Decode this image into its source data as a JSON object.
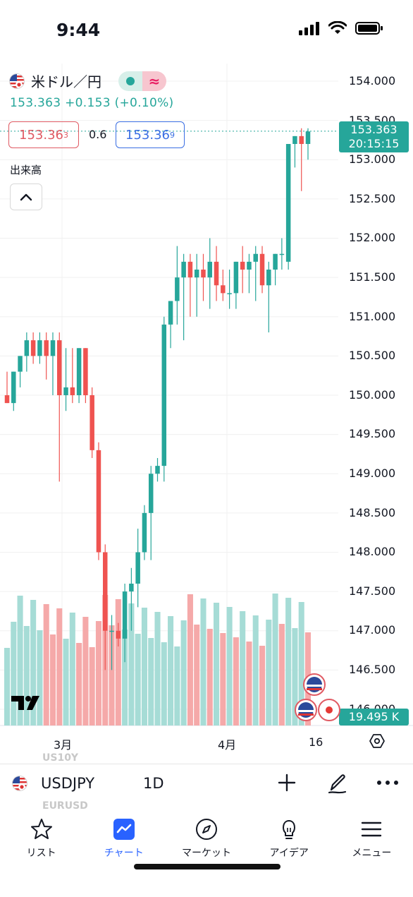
{
  "status_bar": {
    "time": "9:44"
  },
  "header": {
    "symbol_name": "米ドル／円",
    "last_price": "153.363",
    "change": "+0.153",
    "change_pct": "(+0.10%)",
    "bid_main": "153.36",
    "bid_sup": "3",
    "spread": "0.6",
    "ask_main": "153.36",
    "ask_sup": "9",
    "volume_label": "出来高",
    "pill_icon": "≈"
  },
  "price_axis": {
    "labels": [
      "154.000",
      "153.500",
      "153.000",
      "152.500",
      "152.000",
      "151.500",
      "151.000",
      "150.500",
      "150.000",
      "149.500",
      "149.000",
      "148.500",
      "148.000",
      "147.500",
      "147.000",
      "146.500",
      "146.000"
    ],
    "current_price": "153.363",
    "countdown": "20:15:15",
    "volume_value": "19.495 K"
  },
  "time_axis": {
    "labels": [
      "3月",
      "4月",
      "16"
    ]
  },
  "toolbar": {
    "symbol": "USDJPY",
    "interval": "1D",
    "ghost_above": "US10Y",
    "ghost_below": "EURUSD"
  },
  "tabs": [
    {
      "label": "リスト",
      "icon": "star-icon"
    },
    {
      "label": "チャート",
      "icon": "chart-icon"
    },
    {
      "label": "マーケット",
      "icon": "compass-icon"
    },
    {
      "label": "アイデア",
      "icon": "lightbulb-icon"
    },
    {
      "label": "メニュー",
      "icon": "menu-icon"
    }
  ],
  "colors": {
    "up": "#26a69a",
    "down": "#ef5350",
    "up_vol": "#a6dcd6",
    "down_vol": "#f5a9a9",
    "accent": "#2962ff"
  },
  "chart_data": {
    "type": "candlestick",
    "interval": "1D",
    "ylim": [
      146.0,
      154.0
    ],
    "candles": [
      [
        150.0,
        150.3,
        149.9,
        149.9
      ],
      [
        149.9,
        150.3,
        149.8,
        150.3
      ],
      [
        150.3,
        150.5,
        150.1,
        150.5
      ],
      [
        150.5,
        150.8,
        150.3,
        150.7
      ],
      [
        150.7,
        150.8,
        150.4,
        150.5
      ],
      [
        150.5,
        150.8,
        150.4,
        150.7
      ],
      [
        150.7,
        150.8,
        150.2,
        150.5
      ],
      [
        150.5,
        150.8,
        150.0,
        150.7
      ],
      [
        150.7,
        150.8,
        148.9,
        150.0
      ],
      [
        150.0,
        150.6,
        149.8,
        150.1
      ],
      [
        150.1,
        150.6,
        149.9,
        150.0
      ],
      [
        150.0,
        150.6,
        149.9,
        150.6
      ],
      [
        150.6,
        150.6,
        149.9,
        150.0
      ],
      [
        150.0,
        150.1,
        149.2,
        149.3
      ],
      [
        149.3,
        149.4,
        147.9,
        148.0
      ],
      [
        148.0,
        148.1,
        146.5,
        147.0
      ],
      [
        147.0,
        147.2,
        146.5,
        147.0
      ],
      [
        147.0,
        147.1,
        146.8,
        146.9
      ],
      [
        146.9,
        147.6,
        146.6,
        147.5
      ],
      [
        147.5,
        147.8,
        147.0,
        147.6
      ],
      [
        147.6,
        148.3,
        147.3,
        148.0
      ],
      [
        148.0,
        148.6,
        147.9,
        148.5
      ],
      [
        148.5,
        149.1,
        147.9,
        149.0
      ],
      [
        149.0,
        149.2,
        148.9,
        149.1
      ],
      [
        149.1,
        151.0,
        148.9,
        150.9
      ],
      [
        150.9,
        151.2,
        150.6,
        151.2
      ],
      [
        151.2,
        151.9,
        150.9,
        151.5
      ],
      [
        151.5,
        151.8,
        150.7,
        151.7
      ],
      [
        151.7,
        151.8,
        151.0,
        151.5
      ],
      [
        151.5,
        151.8,
        151.0,
        151.6
      ],
      [
        151.6,
        151.8,
        151.2,
        151.5
      ],
      [
        151.5,
        152.0,
        151.1,
        151.7
      ],
      [
        151.7,
        151.9,
        151.2,
        151.4
      ],
      [
        151.4,
        151.6,
        151.2,
        151.3
      ],
      [
        151.3,
        151.6,
        151.1,
        151.3
      ],
      [
        151.3,
        151.7,
        151.1,
        151.7
      ],
      [
        151.7,
        151.9,
        151.3,
        151.6
      ],
      [
        151.6,
        151.8,
        151.3,
        151.7
      ],
      [
        151.7,
        151.9,
        151.2,
        151.8
      ],
      [
        151.8,
        151.9,
        151.3,
        151.4
      ],
      [
        151.4,
        151.7,
        150.8,
        151.6
      ],
      [
        151.6,
        151.8,
        151.4,
        151.8
      ],
      [
        151.8,
        152.0,
        151.6,
        151.8
      ],
      [
        151.7,
        153.2,
        151.6,
        153.2
      ],
      [
        153.2,
        153.3,
        152.9,
        153.3
      ],
      [
        153.3,
        153.4,
        152.6,
        153.2
      ],
      [
        153.2,
        153.4,
        153.0,
        153.36
      ]
    ],
    "volume_colors": [
      "up",
      "up",
      "up",
      "up",
      "up",
      "up",
      "down",
      "down",
      "down",
      "up",
      "up",
      "down",
      "down",
      "down",
      "down",
      "down",
      "down",
      "down",
      "up",
      "up",
      "up",
      "up",
      "up",
      "up",
      "up",
      "up",
      "up",
      "up",
      "down",
      "down",
      "up",
      "down",
      "up",
      "down",
      "up",
      "down",
      "up",
      "down",
      "up",
      "down",
      "up",
      "up",
      "down",
      "up",
      "up",
      "up",
      "down"
    ]
  }
}
